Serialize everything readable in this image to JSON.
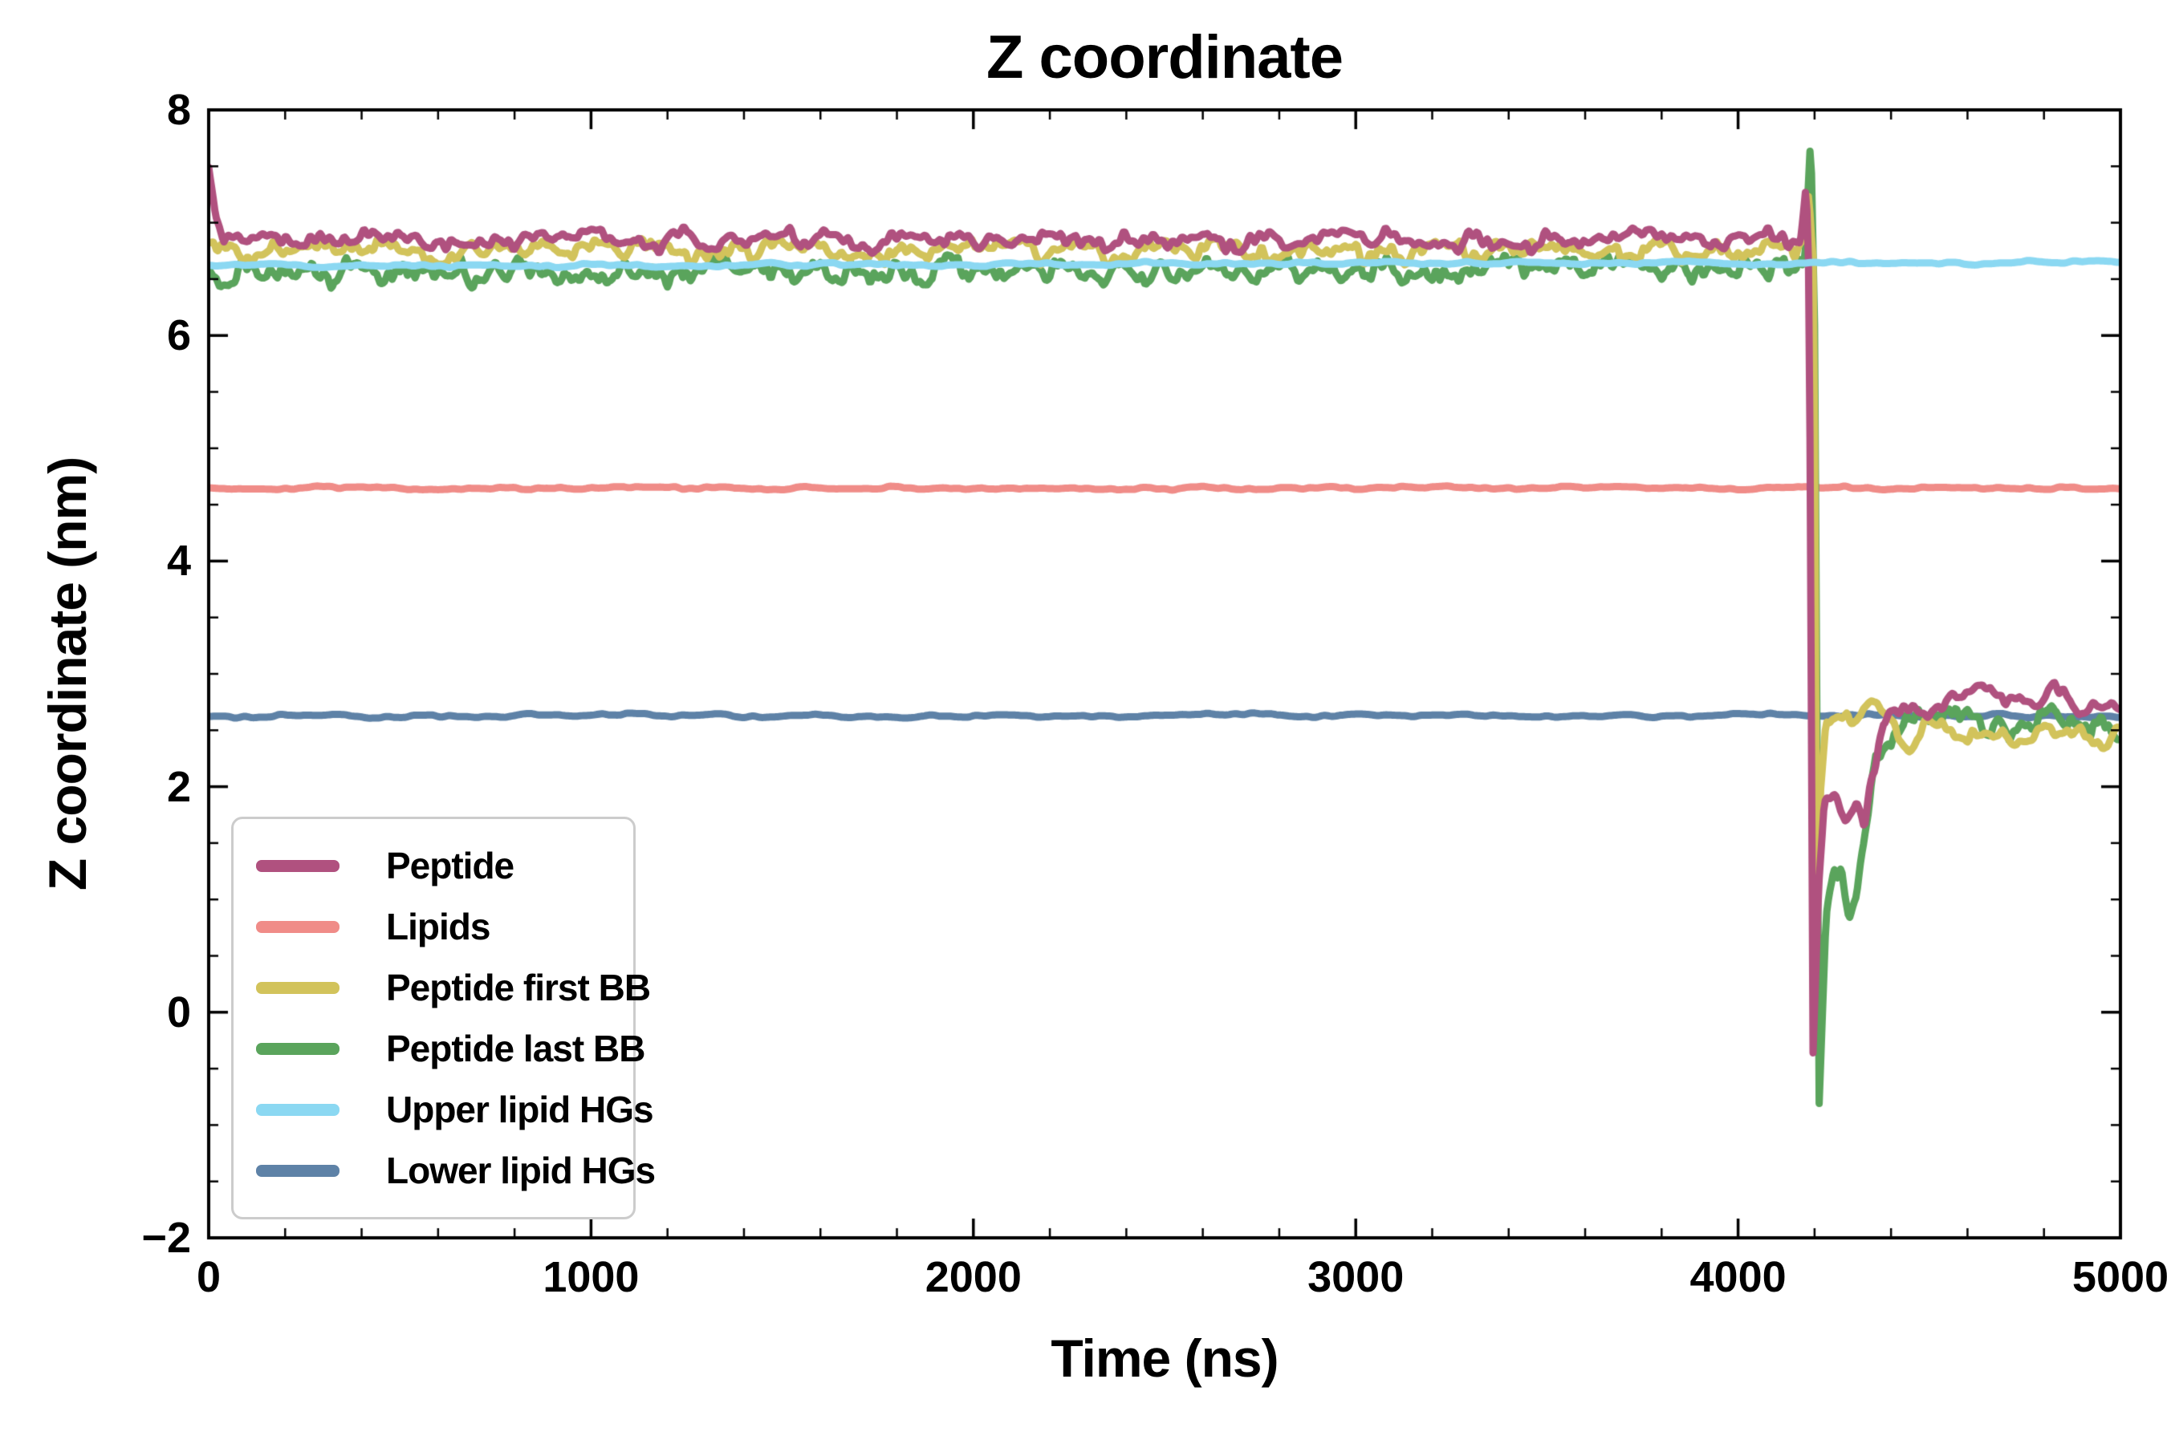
{
  "chart_data": {
    "type": "line",
    "title": "Z coordinate",
    "xlabel": "Time (ns)",
    "ylabel": "Z coordinate (nm)",
    "xlim": [
      0,
      5000
    ],
    "ylim": [
      -2,
      8
    ],
    "x_ticks": [
      0,
      1000,
      2000,
      3000,
      4000,
      5000
    ],
    "y_ticks": [
      -2,
      0,
      2,
      4,
      6,
      8
    ],
    "x_minor_step": 200,
    "y_minor_step": 0.5,
    "grid": false,
    "legend_position": "lower left",
    "series": [
      {
        "name": "Peptide",
        "color": "#b0517f",
        "width": 9,
        "noise": 0.11,
        "noise_scale": 38,
        "seed": 11,
        "anchors": [
          [
            0,
            7.5
          ],
          [
            18,
            7.05
          ],
          [
            40,
            6.85
          ],
          [
            4140,
            6.85
          ],
          [
            4162,
            6.9
          ],
          [
            4178,
            7.42
          ],
          [
            4186,
            6.5
          ],
          [
            4196,
            -0.35
          ],
          [
            4210,
            1.1
          ],
          [
            4225,
            1.8
          ],
          [
            4250,
            1.85
          ],
          [
            4280,
            1.7
          ],
          [
            4310,
            1.85
          ],
          [
            4330,
            1.6
          ],
          [
            4352,
            2.1
          ],
          [
            4380,
            2.55
          ],
          [
            4420,
            2.65
          ],
          [
            4500,
            2.7
          ],
          [
            4600,
            2.8
          ],
          [
            4650,
            2.9
          ],
          [
            4700,
            2.75
          ],
          [
            4780,
            2.8
          ],
          [
            4830,
            2.9
          ],
          [
            4900,
            2.7
          ],
          [
            5000,
            2.6
          ]
        ]
      },
      {
        "name": "Lipids",
        "color": "#f08c88",
        "width": 9,
        "noise": 0.018,
        "noise_scale": 60,
        "seed": 22,
        "anchors": [
          [
            0,
            4.65
          ],
          [
            5000,
            4.65
          ]
        ]
      },
      {
        "name": "Peptide first BB",
        "color": "#d2c35b",
        "width": 9,
        "noise": 0.11,
        "noise_scale": 34,
        "seed": 33,
        "anchors": [
          [
            0,
            6.8
          ],
          [
            30,
            6.75
          ],
          [
            4150,
            6.75
          ],
          [
            4170,
            6.8
          ],
          [
            4185,
            7.15
          ],
          [
            4198,
            6.6
          ],
          [
            4206,
            0.85
          ],
          [
            4216,
            2.0
          ],
          [
            4230,
            2.55
          ],
          [
            4300,
            2.6
          ],
          [
            4350,
            2.75
          ],
          [
            4400,
            2.6
          ],
          [
            4450,
            2.35
          ],
          [
            4500,
            2.55
          ],
          [
            4600,
            2.5
          ],
          [
            4700,
            2.4
          ],
          [
            4800,
            2.55
          ],
          [
            4900,
            2.45
          ],
          [
            5000,
            2.45
          ]
        ]
      },
      {
        "name": "Peptide last BB",
        "color": "#5aa45c",
        "width": 9,
        "noise": 0.13,
        "noise_scale": 30,
        "seed": 44,
        "anchors": [
          [
            0,
            6.55
          ],
          [
            4150,
            6.6
          ],
          [
            4175,
            6.7
          ],
          [
            4190,
            7.7
          ],
          [
            4200,
            6.0
          ],
          [
            4212,
            -0.85
          ],
          [
            4230,
            0.9
          ],
          [
            4255,
            1.35
          ],
          [
            4270,
            1.3
          ],
          [
            4290,
            0.75
          ],
          [
            4310,
            1.0
          ],
          [
            4332,
            1.6
          ],
          [
            4360,
            2.3
          ],
          [
            4400,
            2.35
          ],
          [
            4440,
            2.6
          ],
          [
            4520,
            2.55
          ],
          [
            4600,
            2.6
          ],
          [
            4700,
            2.5
          ],
          [
            4800,
            2.65
          ],
          [
            4900,
            2.55
          ],
          [
            5000,
            2.5
          ]
        ]
      },
      {
        "name": "Upper lipid HGs",
        "color": "#8bd8f2",
        "width": 9,
        "noise": 0.02,
        "noise_scale": 70,
        "seed": 55,
        "anchors": [
          [
            0,
            6.62
          ],
          [
            5000,
            6.65
          ]
        ]
      },
      {
        "name": "Lower lipid HGs",
        "color": "#5e82a7",
        "width": 9,
        "noise": 0.02,
        "noise_scale": 70,
        "seed": 66,
        "anchors": [
          [
            0,
            2.63
          ],
          [
            5000,
            2.63
          ]
        ]
      }
    ],
    "draw_order": [
      1,
      5,
      3,
      2,
      0,
      4
    ]
  }
}
